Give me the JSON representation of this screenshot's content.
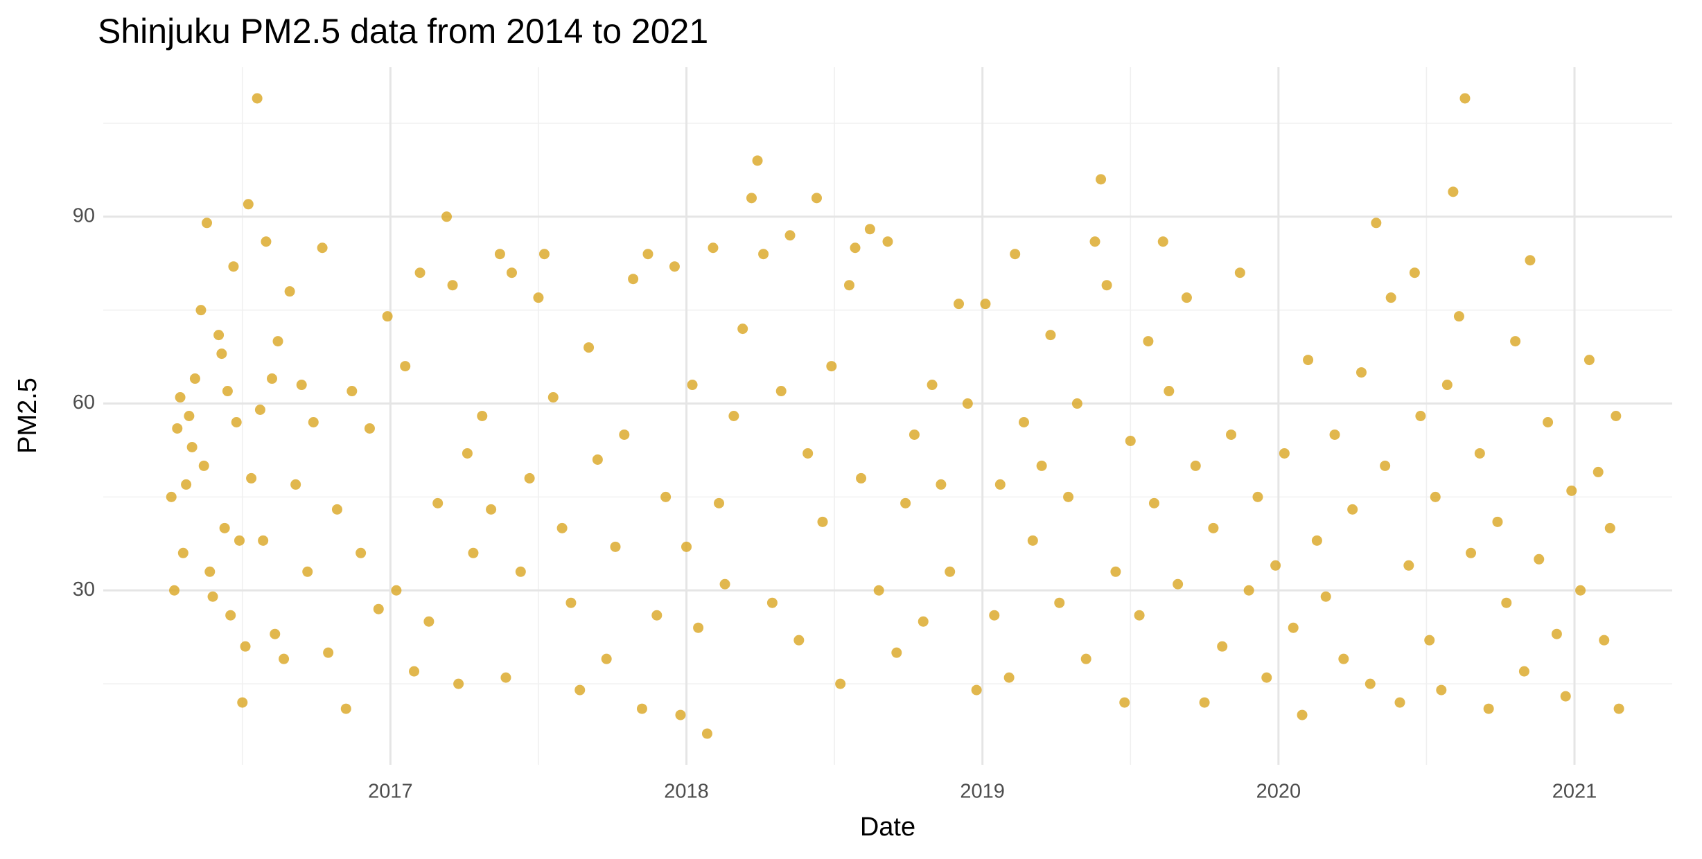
{
  "chart_data": {
    "type": "scatter",
    "title": "Shinjuku PM2.5 data from 2014 to 2021",
    "x_label": "Date",
    "y_label": "PM2.5",
    "color": "#daa520",
    "opacity": 0.8,
    "grid": true,
    "minor_grid": true,
    "xlim": [
      2016.03,
      2021.33
    ],
    "xticks": [
      2017,
      2018,
      2019,
      2020,
      2021
    ],
    "ylim": [
      2,
      114
    ],
    "yticks": [
      30,
      60,
      90
    ],
    "x": [
      2016.26,
      2016.27,
      2016.28,
      2016.29,
      2016.3,
      2016.31,
      2016.32,
      2016.33,
      2016.34,
      2016.36,
      2016.37,
      2016.38,
      2016.39,
      2016.4,
      2016.42,
      2016.43,
      2016.44,
      2016.45,
      2016.46,
      2016.47,
      2016.48,
      2016.49,
      2016.5,
      2016.51,
      2016.52,
      2016.53,
      2016.55,
      2016.56,
      2016.57,
      2016.58,
      2016.6,
      2016.61,
      2016.62,
      2016.64,
      2016.66,
      2016.68,
      2016.7,
      2016.72,
      2016.74,
      2016.77,
      2016.79,
      2016.82,
      2016.85,
      2016.87,
      2016.9,
      2016.93,
      2016.96,
      2016.99,
      2017.02,
      2017.05,
      2017.08,
      2017.1,
      2017.13,
      2017.16,
      2017.19,
      2017.21,
      2017.23,
      2017.26,
      2017.28,
      2017.31,
      2017.34,
      2017.37,
      2017.39,
      2017.41,
      2017.44,
      2017.47,
      2017.5,
      2017.52,
      2017.55,
      2017.58,
      2017.61,
      2017.64,
      2017.67,
      2017.7,
      2017.73,
      2017.76,
      2017.79,
      2017.82,
      2017.85,
      2017.87,
      2017.9,
      2017.93,
      2017.96,
      2017.98,
      2018.0,
      2018.02,
      2018.04,
      2018.07,
      2018.09,
      2018.11,
      2018.13,
      2018.16,
      2018.19,
      2018.22,
      2018.24,
      2018.26,
      2018.29,
      2018.32,
      2018.35,
      2018.38,
      2018.41,
      2018.44,
      2018.46,
      2018.49,
      2018.52,
      2018.55,
      2018.57,
      2018.59,
      2018.62,
      2018.65,
      2018.68,
      2018.71,
      2018.74,
      2018.77,
      2018.8,
      2018.83,
      2018.86,
      2018.89,
      2018.92,
      2018.95,
      2018.98,
      2019.01,
      2019.04,
      2019.06,
      2019.09,
      2019.11,
      2019.14,
      2019.17,
      2019.2,
      2019.23,
      2019.26,
      2019.29,
      2019.32,
      2019.35,
      2019.38,
      2019.4,
      2019.42,
      2019.45,
      2019.48,
      2019.5,
      2019.53,
      2019.56,
      2019.58,
      2019.61,
      2019.63,
      2019.66,
      2019.69,
      2019.72,
      2019.75,
      2019.78,
      2019.81,
      2019.84,
      2019.87,
      2019.9,
      2019.93,
      2019.96,
      2019.99,
      2020.02,
      2020.05,
      2020.08,
      2020.1,
      2020.13,
      2020.16,
      2020.19,
      2020.22,
      2020.25,
      2020.28,
      2020.31,
      2020.33,
      2020.36,
      2020.38,
      2020.41,
      2020.44,
      2020.46,
      2020.48,
      2020.51,
      2020.53,
      2020.55,
      2020.57,
      2020.59,
      2020.61,
      2020.63,
      2020.65,
      2020.68,
      2020.71,
      2020.74,
      2020.77,
      2020.8,
      2020.83,
      2020.85,
      2020.88,
      2020.91,
      2020.94,
      2020.97,
      2020.99,
      2021.02,
      2021.05,
      2021.08,
      2021.1,
      2021.12,
      2021.14,
      2021.15
    ],
    "values": [
      45,
      30,
      56,
      61,
      36,
      47,
      58,
      53,
      64,
      75,
      50,
      89,
      33,
      29,
      71,
      68,
      40,
      62,
      26,
      82,
      57,
      38,
      12,
      21,
      92,
      48,
      109,
      59,
      38,
      86,
      64,
      23,
      70,
      19,
      78,
      47,
      63,
      33,
      57,
      85,
      20,
      43,
      11,
      62,
      36,
      56,
      27,
      74,
      30,
      66,
      17,
      81,
      25,
      44,
      90,
      79,
      15,
      52,
      36,
      58,
      43,
      84,
      16,
      81,
      33,
      48,
      77,
      84,
      61,
      40,
      28,
      14,
      69,
      51,
      19,
      37,
      55,
      80,
      11,
      84,
      26,
      45,
      82,
      10,
      37,
      63,
      24,
      7,
      85,
      44,
      31,
      58,
      72,
      93,
      99,
      84,
      28,
      62,
      87,
      22,
      52,
      93,
      41,
      66,
      15,
      79,
      85,
      48,
      88,
      30,
      86,
      20,
      44,
      55,
      25,
      63,
      47,
      33,
      76,
      60,
      14,
      76,
      26,
      47,
      16,
      84,
      57,
      38,
      50,
      71,
      28,
      45,
      60,
      19,
      86,
      96,
      79,
      33,
      12,
      54,
      26,
      70,
      44,
      86,
      62,
      31,
      77,
      50,
      12,
      40,
      21,
      55,
      81,
      30,
      45,
      16,
      34,
      52,
      24,
      10,
      67,
      38,
      29,
      55,
      19,
      43,
      65,
      15,
      89,
      50,
      77,
      12,
      34,
      81,
      58,
      22,
      45,
      14,
      63,
      94,
      74,
      109,
      36,
      52,
      11,
      41,
      28,
      70,
      17,
      83,
      35,
      57,
      23,
      13,
      46,
      30,
      67,
      49,
      22,
      40,
      58,
      11
    ]
  }
}
